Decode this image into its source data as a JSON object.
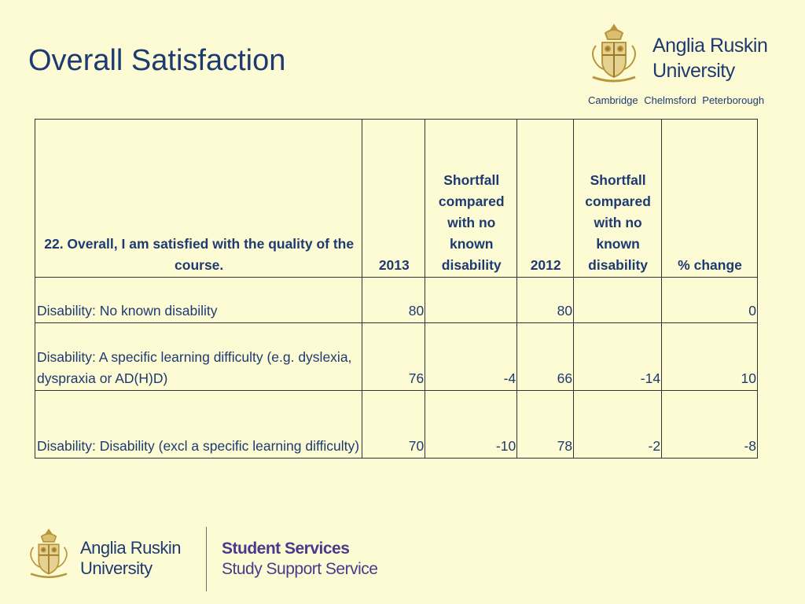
{
  "title": "Overall Satisfaction",
  "logo": {
    "name_line1": "Anglia Ruskin",
    "name_line2": "University",
    "campuses": "Cambridge Chelmsford Peterborough"
  },
  "footer": {
    "name_line1": "Anglia Ruskin",
    "name_line2": "University",
    "service_line1": "Student Services",
    "service_line2": "Study Support Service"
  },
  "table": {
    "headers": [
      "22. Overall, I am satisfied with the quality of the course.",
      "2013",
      "Shortfall compared with no known disability",
      "2012",
      "Shortfall compared with no known disability",
      "% change"
    ],
    "rows": [
      [
        "Disability: No known disability",
        "80",
        "",
        "80",
        "",
        "0"
      ],
      [
        "Disability: A specific learning difficulty (e.g. dyslexia, dyspraxia or AD(H)D)",
        "76",
        "-4",
        "66",
        "-14",
        "10"
      ],
      [
        "Disability: Disability (excl a specific learning difficulty)",
        "70",
        "-10",
        "78",
        "-2",
        "-8"
      ]
    ]
  },
  "colors": {
    "background": "#fdfbd3",
    "text": "#1e3a72",
    "crest_gold": "#b8963e",
    "service_purple": "#4a3a8c"
  },
  "icons": [
    "university-crest-icon"
  ]
}
